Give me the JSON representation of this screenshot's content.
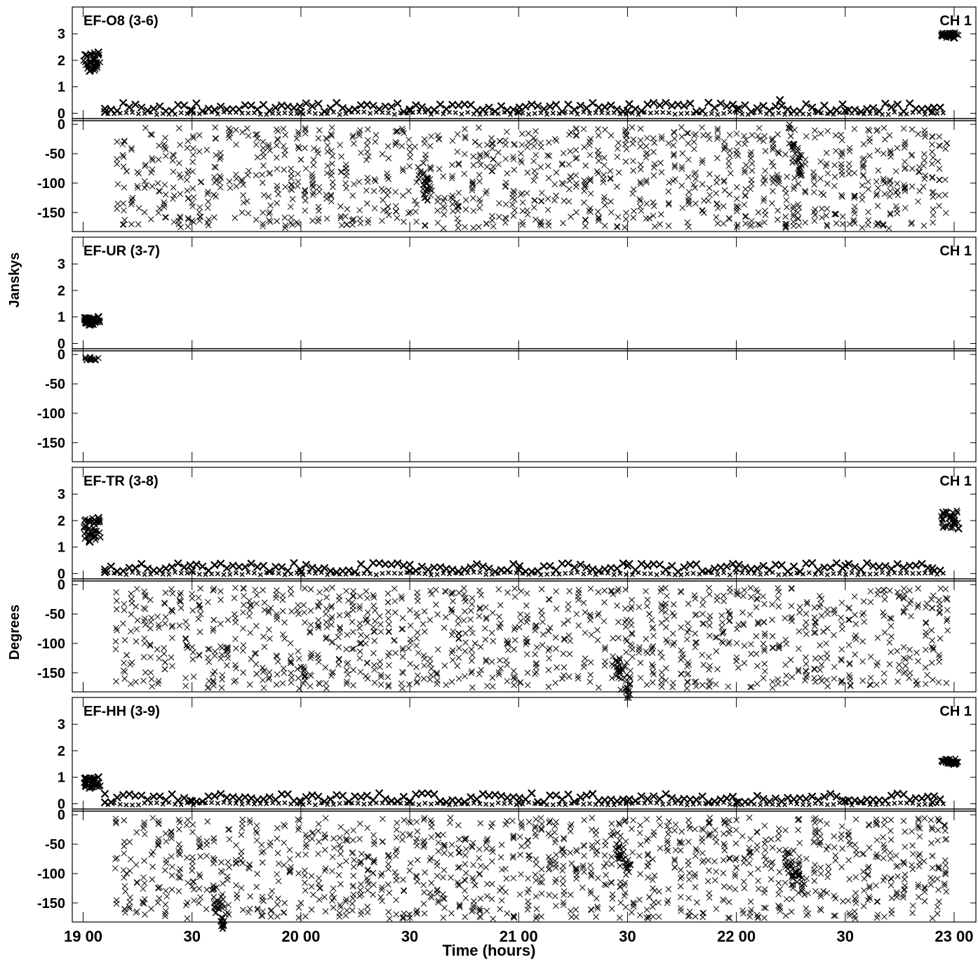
{
  "figure": {
    "xlabel": "Time (hours)",
    "ylabel_top": "Janskys",
    "ylabel_bottom": "Degrees",
    "x_ticks": [
      "19 00",
      "30",
      "20 00",
      "30",
      "21 00",
      "30",
      "22 00",
      "30",
      "23 00"
    ]
  },
  "colors": {
    "ink": "#000000",
    "background": "#ffffff"
  },
  "chart_data": [
    {
      "type": "scatter",
      "title": "EF-O8 (3-6)",
      "channel": "CH 1",
      "x_unit": "hours",
      "x_range": [
        18.95,
        23.1
      ],
      "amplitude": {
        "unit": "Janskys",
        "ticks": [
          0,
          1,
          2,
          3
        ],
        "ylim": [
          -0.2,
          3.8
        ],
        "series": [
          {
            "x": [
              19.01,
              19.03,
              19.05,
              19.07
            ],
            "values": [
              2.2,
              1.6,
              2.0,
              2.3
            ]
          },
          {
            "x": [
              22.95,
              22.98,
              23.0
            ],
            "values": [
              2.95,
              2.9,
              2.85
            ]
          },
          {
            "x": [
              19.1,
              19.5,
              20.0,
              20.5,
              21.0,
              21.5,
              22.0,
              22.2,
              22.5,
              22.9
            ],
            "values": [
              0.05,
              0.1,
              0.05,
              0.1,
              0.05,
              0.1,
              0.15,
              0.5,
              0.1,
              0.05
            ]
          }
        ]
      },
      "phase": {
        "unit": "Degrees",
        "ticks": [
          0,
          -50,
          -100,
          -150
        ],
        "ylim": [
          -180,
          5
        ],
        "series": [
          {
            "x": [
              19.2,
              19.6,
              20.0,
              20.4,
              20.8,
              21.2,
              21.6,
              22.0,
              22.4,
              22.9
            ],
            "values": [
              -80,
              -120,
              -60,
              -140,
              -30,
              -100,
              -160,
              -50,
              -120,
              -90
            ]
          },
          {
            "x": [
              20.55,
              20.57,
              20.58
            ],
            "values": [
              -80,
              -95,
              -110
            ],
            "name_hint": ""
          },
          {
            "x": [
              22.25,
              22.27,
              22.3
            ],
            "values": [
              -20,
              -50,
              -70
            ]
          }
        ]
      }
    },
    {
      "type": "scatter",
      "title": "EF-UR (3-7)",
      "channel": "CH 1",
      "x_unit": "hours",
      "x_range": [
        18.95,
        23.1
      ],
      "amplitude": {
        "unit": "Janskys",
        "ticks": [
          0,
          1,
          2,
          3
        ],
        "ylim": [
          -0.2,
          3.8
        ],
        "series": [
          {
            "x": [
              19.01,
              19.03,
              19.05,
              19.07
            ],
            "values": [
              0.95,
              0.7,
              0.9,
              1.0
            ]
          }
        ]
      },
      "phase": {
        "unit": "Degrees",
        "ticks": [
          0,
          -50,
          -100,
          -150
        ],
        "ylim": [
          -180,
          5
        ],
        "series": [
          {
            "x": [
              19.01,
              19.04,
              19.07
            ],
            "values": [
              -5,
              -8,
              -6
            ]
          }
        ]
      }
    },
    {
      "type": "scatter",
      "title": "EF-TR (3-8)",
      "channel": "CH 1",
      "x_unit": "hours",
      "x_range": [
        18.95,
        23.1
      ],
      "amplitude": {
        "unit": "Janskys",
        "ticks": [
          0,
          1,
          2,
          3
        ],
        "ylim": [
          -0.2,
          3.8
        ],
        "series": [
          {
            "x": [
              19.01,
              19.03,
              19.05,
              19.07
            ],
            "values": [
              1.8,
              1.2,
              1.9,
              2.1
            ]
          },
          {
            "x": [
              22.95,
              22.98,
              23.0,
              23.02
            ],
            "values": [
              2.3,
              2.1,
              1.9,
              1.7
            ]
          },
          {
            "x": [
              19.1,
              19.5,
              20.0,
              20.5,
              21.0,
              21.5,
              22.0,
              22.5,
              22.9
            ],
            "values": [
              0.05,
              0.1,
              0.05,
              0.1,
              0.15,
              0.3,
              0.2,
              0.3,
              0.2
            ]
          }
        ]
      },
      "phase": {
        "unit": "Degrees",
        "ticks": [
          0,
          -50,
          -100,
          -150
        ],
        "ylim": [
          -180,
          5
        ],
        "series": [
          {
            "x": [
              19.2,
              19.6,
              20.0,
              20.4,
              20.8,
              21.2,
              21.6,
              22.0,
              22.4,
              22.9
            ],
            "values": [
              -120,
              -60,
              -140,
              -30,
              -100,
              -160,
              -50,
              -130,
              -80,
              -40
            ]
          },
          {
            "x": [
              21.45,
              21.47,
              21.5
            ],
            "values": [
              -140,
              -160,
              -175
            ]
          }
        ]
      }
    },
    {
      "type": "scatter",
      "title": "EF-HH (3-9)",
      "channel": "CH 1",
      "x_unit": "hours",
      "x_range": [
        18.95,
        23.1
      ],
      "amplitude": {
        "unit": "Janskys",
        "ticks": [
          0,
          1,
          2,
          3
        ],
        "ylim": [
          -0.2,
          3.8
        ],
        "series": [
          {
            "x": [
              19.01,
              19.03,
              19.05,
              19.07
            ],
            "values": [
              0.95,
              0.6,
              0.9,
              1.0
            ]
          },
          {
            "x": [
              22.95,
              22.98,
              23.0
            ],
            "values": [
              1.6,
              1.55,
              1.5
            ]
          },
          {
            "x": [
              19.1,
              19.5,
              20.0,
              20.5,
              21.0,
              21.5,
              22.0,
              22.5,
              22.9
            ],
            "values": [
              0.05,
              0.1,
              0.05,
              0.1,
              0.05,
              0.1,
              0.05,
              0.1,
              0.05
            ]
          }
        ]
      },
      "phase": {
        "unit": "Degrees",
        "ticks": [
          0,
          -50,
          -100,
          -150
        ],
        "ylim": [
          -180,
          5
        ],
        "series": [
          {
            "x": [
              19.2,
              19.6,
              20.0,
              20.4,
              20.8,
              21.2,
              21.6,
              22.0,
              22.4,
              22.9
            ],
            "values": [
              -100,
              -40,
              -150,
              -70,
              -120,
              -60,
              -140,
              -90,
              -130,
              -70
            ]
          },
          {
            "x": [
              19.6,
              19.62,
              19.64
            ],
            "values": [
              -140,
              -160,
              -175
            ]
          },
          {
            "x": [
              21.45,
              21.47,
              21.5
            ],
            "values": [
              -50,
              -70,
              -90
            ]
          },
          {
            "x": [
              22.25,
              22.27,
              22.3
            ],
            "values": [
              -80,
              -100,
              -120
            ]
          }
        ]
      }
    }
  ]
}
